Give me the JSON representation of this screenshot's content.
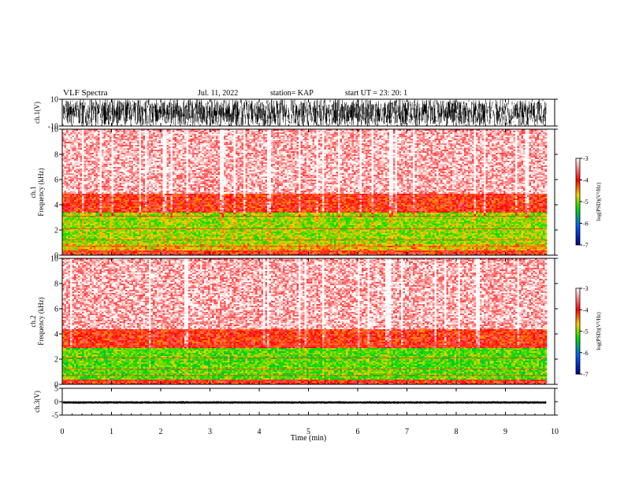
{
  "header": {
    "title": "VLF Spectra",
    "date": "Jul. 11, 2022",
    "station": "station= KAP",
    "start": "start UT =  23: 20: 1"
  },
  "chart_data": [
    {
      "type": "line",
      "panel": "ch1-waveform",
      "ylabel": "ch.1(V)",
      "ylim": [
        -10,
        10
      ],
      "ytick_labels": [
        "10",
        "-10"
      ],
      "xlim": [
        0,
        10
      ],
      "description_values": {
        "approx_min": -10,
        "approx_max": 10
      }
    },
    {
      "type": "heatmap",
      "panel": "ch1-spectrogram",
      "ylabel": "ch.1\nFrequency (kHz)",
      "ylim": [
        0,
        10
      ],
      "ytick_labels": [
        "0",
        "2",
        "4",
        "6",
        "8",
        "10"
      ],
      "xlim": [
        0,
        10
      ],
      "x_data_end": 9.83,
      "band_profile": [
        {
          "freq_khz": [
            0,
            0.4
          ],
          "log_psd": -4.0
        },
        {
          "freq_khz": [
            0.4,
            1.0
          ],
          "log_psd": -4.6
        },
        {
          "freq_khz": [
            1.0,
            3.5
          ],
          "log_psd": -4.9
        },
        {
          "freq_khz": [
            3.5,
            4.9
          ],
          "log_psd": -4.0
        },
        {
          "freq_khz": [
            4.9,
            10
          ],
          "log_psd": -3.3
        }
      ],
      "colorbar": {
        "label": "log(PSD)(V²/Hz)",
        "range": [
          -7,
          -3
        ],
        "tick_labels": [
          "-3",
          "-4",
          "-5",
          "-6",
          "-7"
        ]
      }
    },
    {
      "type": "heatmap",
      "panel": "ch2-spectrogram",
      "ylabel": "ch.2\nFrequency (kHz)",
      "ylim": [
        0,
        10
      ],
      "ytick_labels": [
        "0",
        "2",
        "4",
        "6",
        "8",
        "10"
      ],
      "xlim": [
        0,
        10
      ],
      "x_data_end": 9.83,
      "band_profile": [
        {
          "freq_khz": [
            0,
            0.5
          ],
          "log_psd": -4.0
        },
        {
          "freq_khz": [
            0.5,
            3.0
          ],
          "log_psd": -5.1
        },
        {
          "freq_khz": [
            3.0,
            4.5
          ],
          "log_psd": -4.0
        },
        {
          "freq_khz": [
            4.5,
            10
          ],
          "log_psd": -3.3
        }
      ],
      "colorbar": {
        "label": "log(PSD)(V²/Hz)",
        "range": [
          -7,
          -3
        ],
        "tick_labels": [
          "-3",
          "-4",
          "-5",
          "-6",
          "-7"
        ]
      }
    },
    {
      "type": "line",
      "panel": "ch3-waveform",
      "ylabel": "ch.3(V)",
      "ylim": [
        -5,
        5
      ],
      "ytick_labels": [
        "5",
        "0",
        "-5"
      ],
      "xlim": [
        0,
        10
      ],
      "description_values": {
        "approx_min": -0.8,
        "approx_max": 0.2
      }
    }
  ],
  "xaxis": {
    "label": "Time (min)",
    "range": [
      0,
      10
    ],
    "tick_labels": [
      "0",
      "1",
      "2",
      "3",
      "4",
      "5",
      "6",
      "7",
      "8",
      "9",
      "10"
    ]
  }
}
